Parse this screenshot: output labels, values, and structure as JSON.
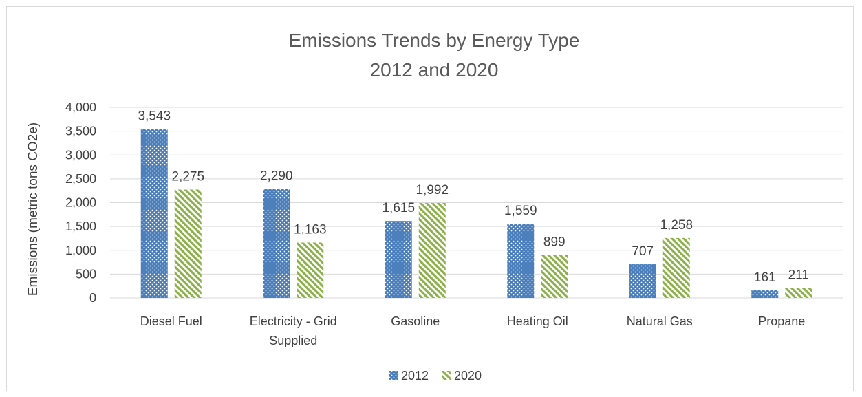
{
  "chart_data": {
    "type": "bar",
    "title": "Emissions Trends by Energy Type",
    "subtitle": "2012 and 2020",
    "xlabel": "",
    "ylabel": "Emissions (metric tons CO2e)",
    "ylim": [
      0,
      4000
    ],
    "yticks": [
      "0",
      "500",
      "1,000",
      "1,500",
      "2,000",
      "2,500",
      "3,000",
      "3,500",
      "4,000"
    ],
    "ytick_values": [
      0,
      500,
      1000,
      1500,
      2000,
      2500,
      3000,
      3500,
      4000
    ],
    "categories": [
      [
        "Diesel Fuel"
      ],
      [
        "Electricity - Grid",
        "Supplied"
      ],
      [
        "Gasoline"
      ],
      [
        "Heating Oil"
      ],
      [
        "Natural Gas"
      ],
      [
        "Propane"
      ]
    ],
    "series": [
      {
        "name": "2012",
        "color": "#4a7ebb",
        "pattern": "dots",
        "values": [
          3543,
          2290,
          1615,
          1559,
          707,
          161
        ],
        "labels": [
          "3,543",
          "2,290",
          "1,615",
          "1,559",
          "707",
          "161"
        ]
      },
      {
        "name": "2020",
        "color": "#8cb04a",
        "pattern": "diagonal-stripes",
        "values": [
          2275,
          1163,
          1992,
          899,
          1258,
          211
        ],
        "labels": [
          "2,275",
          "1,163",
          "1,992",
          "899",
          "1,258",
          "211"
        ]
      }
    ],
    "grid": true,
    "legend": "bottom-center"
  }
}
